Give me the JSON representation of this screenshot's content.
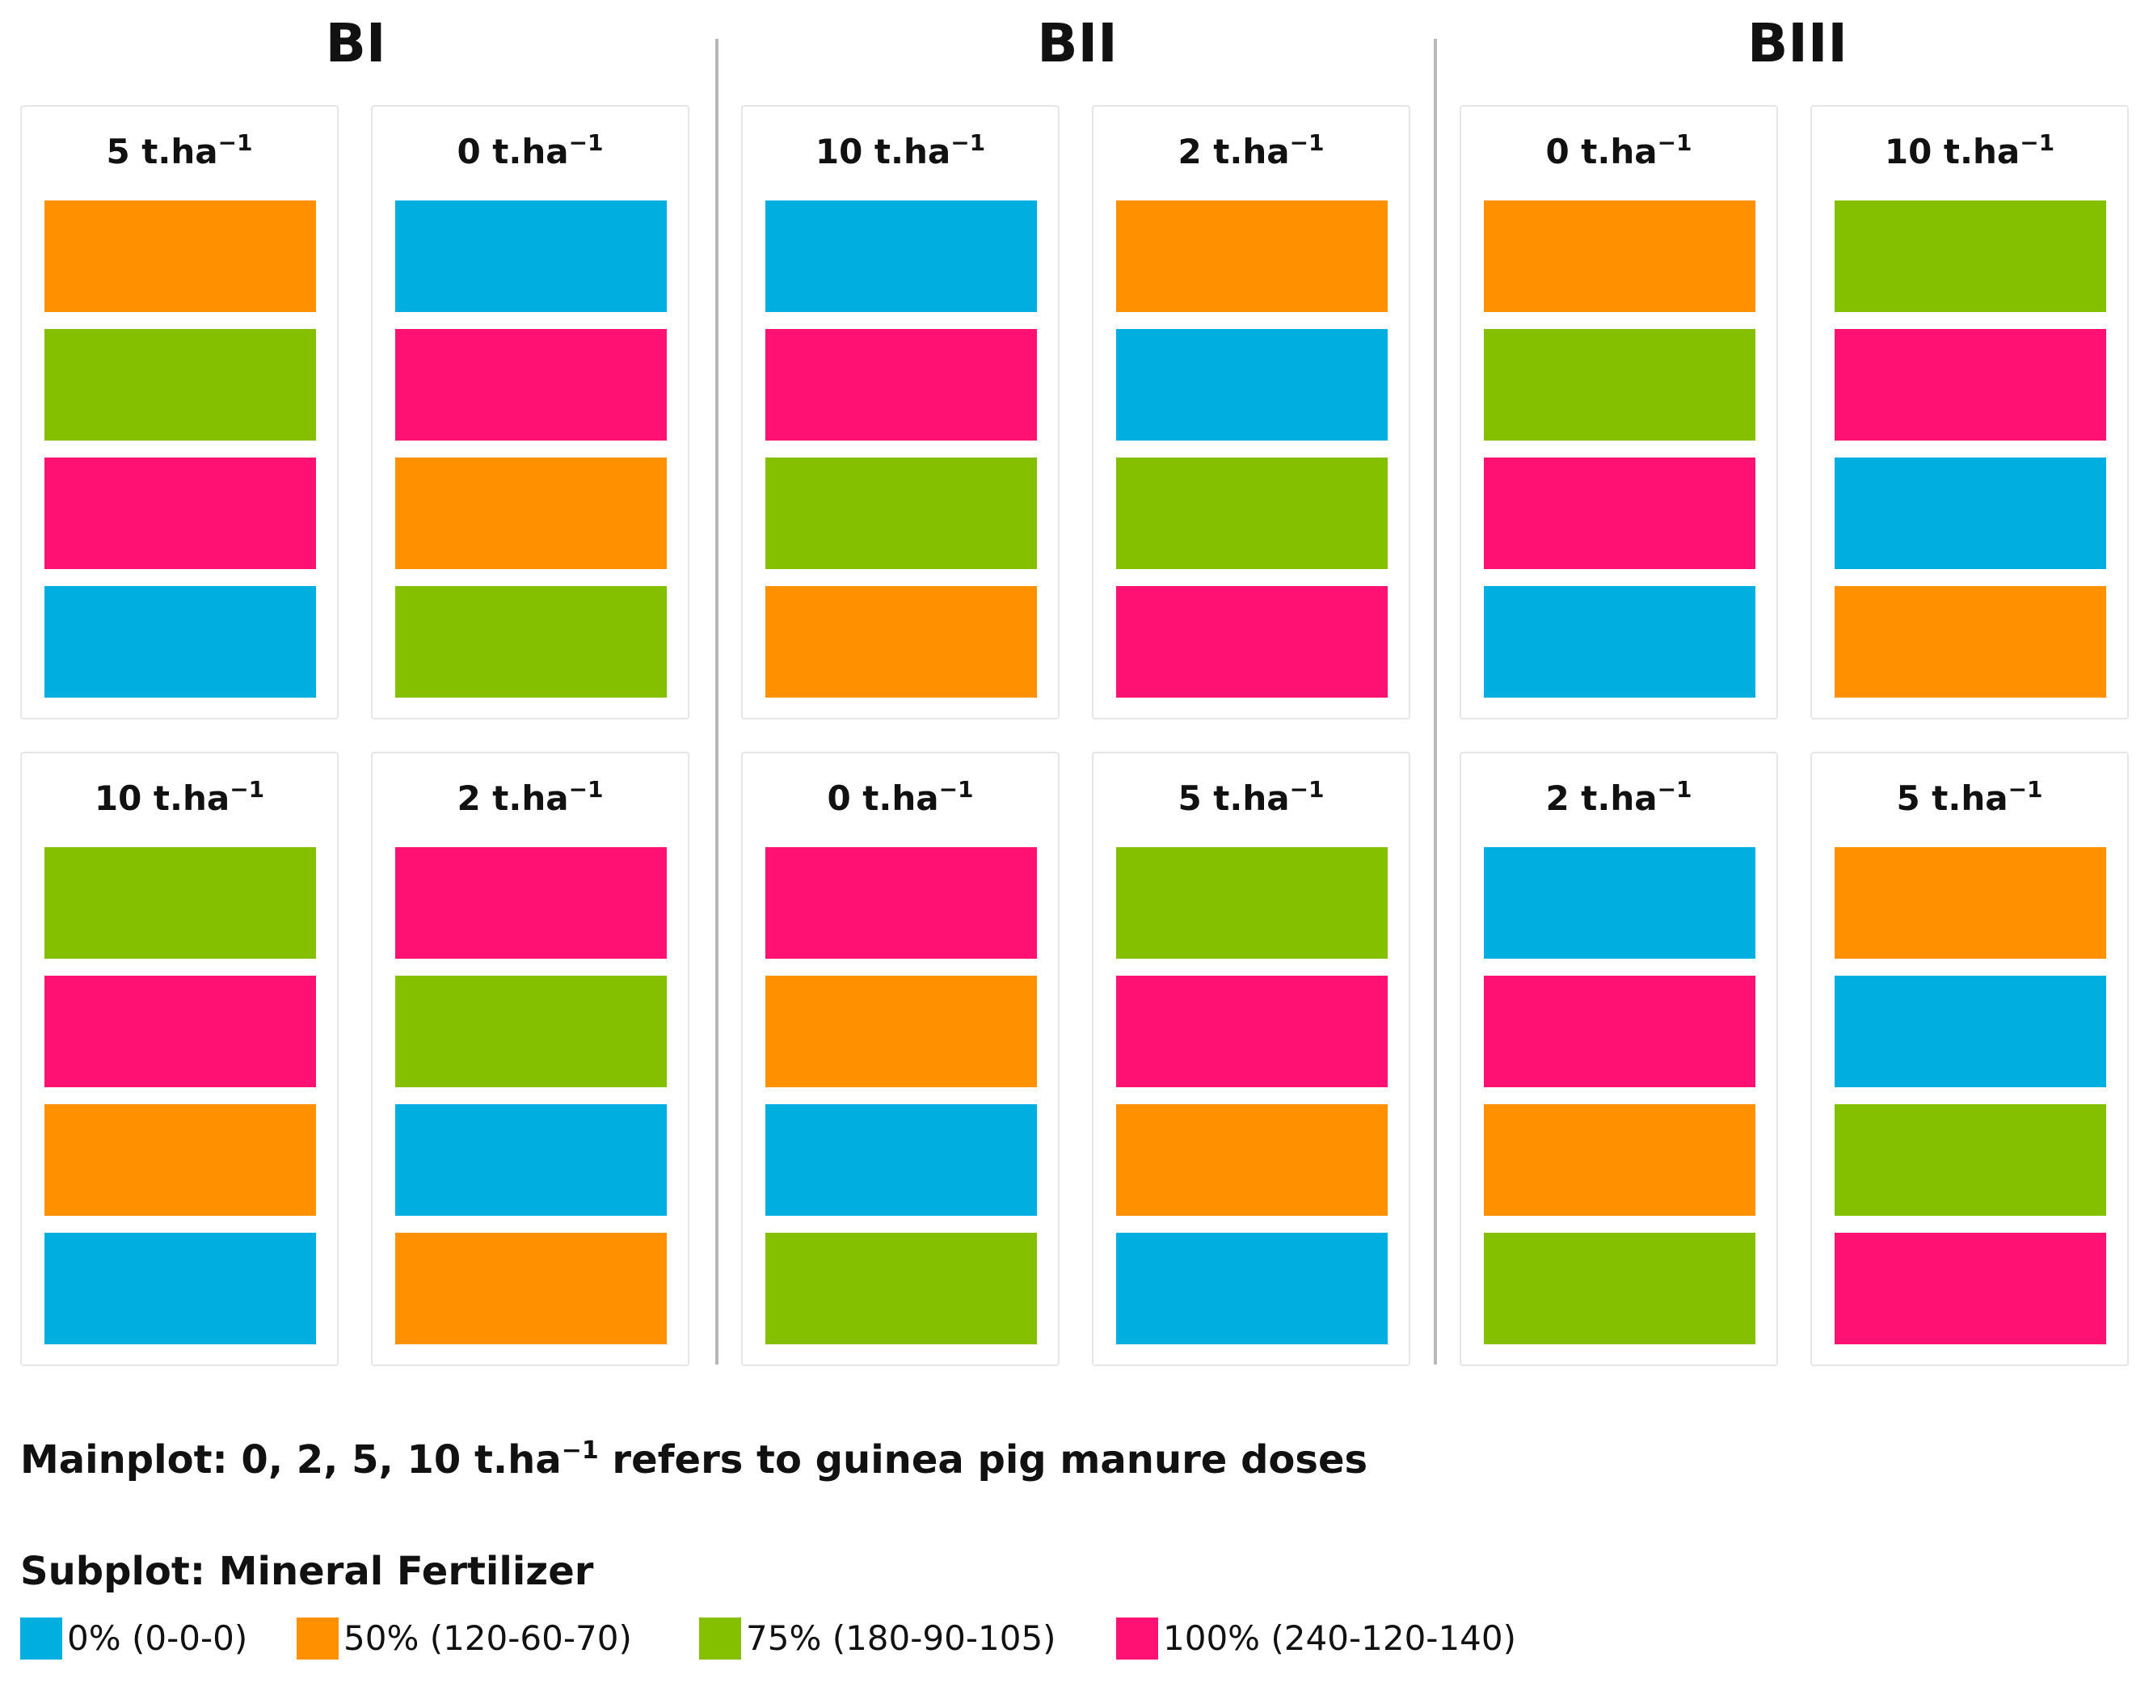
{
  "colors": {
    "0%": "#00aedf",
    "50%": "#ff9100",
    "75%": "#84c000",
    "100%": "#ff1173"
  },
  "unit": "t.ha",
  "unit_exponent": "−1",
  "blocks": [
    {
      "name": "BI",
      "mainplots": [
        {
          "dose": "5",
          "subplots": [
            "50%",
            "75%",
            "100%",
            "0%"
          ]
        },
        {
          "dose": "0",
          "subplots": [
            "0%",
            "100%",
            "50%",
            "75%"
          ]
        },
        {
          "dose": "10",
          "subplots": [
            "75%",
            "100%",
            "50%",
            "0%"
          ]
        },
        {
          "dose": "2",
          "subplots": [
            "100%",
            "75%",
            "0%",
            "50%"
          ]
        }
      ]
    },
    {
      "name": "BII",
      "mainplots": [
        {
          "dose": "10",
          "subplots": [
            "0%",
            "100%",
            "75%",
            "50%"
          ]
        },
        {
          "dose": "2",
          "subplots": [
            "50%",
            "0%",
            "75%",
            "100%"
          ]
        },
        {
          "dose": "0",
          "subplots": [
            "100%",
            "50%",
            "0%",
            "75%"
          ]
        },
        {
          "dose": "5",
          "subplots": [
            "75%",
            "100%",
            "50%",
            "0%"
          ]
        }
      ]
    },
    {
      "name": "BIII",
      "mainplots": [
        {
          "dose": "0",
          "subplots": [
            "50%",
            "75%",
            "100%",
            "0%"
          ]
        },
        {
          "dose": "10",
          "subplots": [
            "75%",
            "100%",
            "0%",
            "50%"
          ]
        },
        {
          "dose": "2",
          "subplots": [
            "0%",
            "100%",
            "50%",
            "75%"
          ]
        },
        {
          "dose": "5",
          "subplots": [
            "50%",
            "0%",
            "75%",
            "100%"
          ]
        }
      ]
    }
  ],
  "mainplot_caption": {
    "prefix": "Mainplot: 0, 2, 5, 10 t.ha",
    "exponent": "−1",
    "suffix": " refers to guinea pig manure doses"
  },
  "subplot_caption": "Subplot: Mineral Fertilizer",
  "legend": [
    {
      "key": "0%",
      "label": "0% (0-0-0)"
    },
    {
      "key": "50%",
      "label": "50% (120-60-70)"
    },
    {
      "key": "75%",
      "label": "75% (180-90-105)"
    },
    {
      "key": "100%",
      "label": "100% (240-120-140)"
    }
  ]
}
